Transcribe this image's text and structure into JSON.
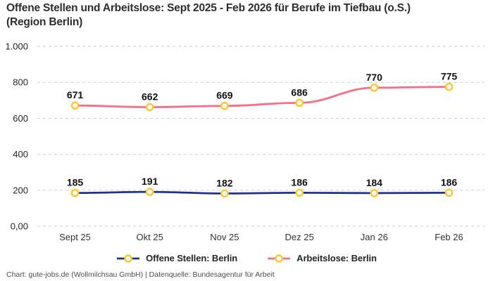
{
  "page": {
    "title": "Offene Stellen und Arbeitslose: Sept 2025 - Feb 2026 für Berufe im Tiefbau (o.S.)\n(Region Berlin)",
    "footer": "Chart: gute-jobs.de (Wollmilchsau GmbH) | Datenquelle: Bundesagentur für Arbeit"
  },
  "chart_data": {
    "type": "line",
    "title": "Offene Stellen und Arbeitslose: Sept 2025 - Feb 2026 für Berufe im Tiefbau (o.S.) (Region Berlin)",
    "categories": [
      "Sept 25",
      "Okt 25",
      "Nov 25",
      "Dez 25",
      "Jan 26",
      "Feb 26"
    ],
    "series": [
      {
        "name": "Offene Stellen: Berlin",
        "values": [
          185,
          191,
          182,
          186,
          184,
          186
        ],
        "color": "#1C3490"
      },
      {
        "name": "Arbeitslose: Berlin",
        "values": [
          671,
          662,
          669,
          686,
          770,
          775
        ],
        "color": "#F96E87"
      }
    ],
    "y_ticks": [
      {
        "value": 0,
        "label": "0,00"
      },
      {
        "value": 200,
        "label": "200"
      },
      {
        "value": 400,
        "label": "400"
      },
      {
        "value": 600,
        "label": "600"
      },
      {
        "value": 800,
        "label": "800"
      },
      {
        "value": 1000,
        "label": "1.000"
      }
    ],
    "ylim": [
      0,
      1000
    ],
    "grid": "horizontal-dashed",
    "grid_color": "#CBCBCB",
    "axis_text_color": "#333333",
    "data_label_color": "#111111",
    "data_labels": true,
    "legend_position": "bottom-center",
    "marker": {
      "shape": "circle",
      "stroke": "#FFC52F",
      "fill": "#FFFFFF"
    }
  }
}
